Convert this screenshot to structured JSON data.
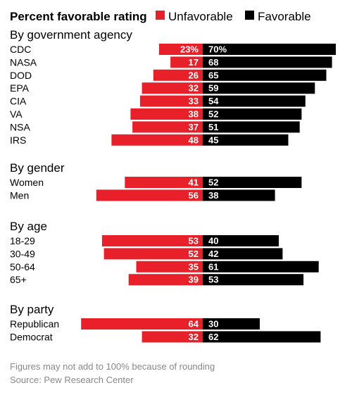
{
  "chart_data": {
    "type": "bar",
    "title": "Percent favorable rating",
    "legend": [
      {
        "name": "Unfavorable",
        "color": "#e8202a"
      },
      {
        "name": "Favorable",
        "color": "#000000"
      }
    ],
    "legend_placement": "top-right",
    "sections": [
      {
        "title": "By government agency",
        "rows": [
          {
            "label": "CDC",
            "unfavorable": 23,
            "favorable": 70,
            "unfavorable_text": "23%",
            "favorable_text": "70%"
          },
          {
            "label": "NASA",
            "unfavorable": 17,
            "favorable": 68,
            "unfavorable_text": "17",
            "favorable_text": "68"
          },
          {
            "label": "DOD",
            "unfavorable": 26,
            "favorable": 65,
            "unfavorable_text": "26",
            "favorable_text": "65"
          },
          {
            "label": "EPA",
            "unfavorable": 32,
            "favorable": 59,
            "unfavorable_text": "32",
            "favorable_text": "59"
          },
          {
            "label": "CIA",
            "unfavorable": 33,
            "favorable": 54,
            "unfavorable_text": "33",
            "favorable_text": "54"
          },
          {
            "label": "VA",
            "unfavorable": 38,
            "favorable": 52,
            "unfavorable_text": "38",
            "favorable_text": "52"
          },
          {
            "label": "NSA",
            "unfavorable": 37,
            "favorable": 51,
            "unfavorable_text": "37",
            "favorable_text": "51"
          },
          {
            "label": "IRS",
            "unfavorable": 48,
            "favorable": 45,
            "unfavorable_text": "48",
            "favorable_text": "45"
          }
        ]
      },
      {
        "title": "By gender",
        "rows": [
          {
            "label": "Women",
            "unfavorable": 41,
            "favorable": 52,
            "unfavorable_text": "41",
            "favorable_text": "52"
          },
          {
            "label": "Men",
            "unfavorable": 56,
            "favorable": 38,
            "unfavorable_text": "56",
            "favorable_text": "38"
          }
        ]
      },
      {
        "title": "By age",
        "rows": [
          {
            "label": "18-29",
            "unfavorable": 53,
            "favorable": 40,
            "unfavorable_text": "53",
            "favorable_text": "40"
          },
          {
            "label": "30-49",
            "unfavorable": 52,
            "favorable": 42,
            "unfavorable_text": "52",
            "favorable_text": "42"
          },
          {
            "label": "50-64",
            "unfavorable": 35,
            "favorable": 61,
            "unfavorable_text": "35",
            "favorable_text": "61"
          },
          {
            "label": "65+",
            "unfavorable": 39,
            "favorable": 53,
            "unfavorable_text": "39",
            "favorable_text": "53"
          }
        ]
      },
      {
        "title": "By party",
        "rows": [
          {
            "label": "Republican",
            "unfavorable": 64,
            "favorable": 30,
            "unfavorable_text": "64",
            "favorable_text": "30"
          },
          {
            "label": "Democrat",
            "unfavorable": 32,
            "favorable": 62,
            "unfavorable_text": "32",
            "favorable_text": "62"
          }
        ]
      }
    ],
    "notes": [
      "Figures may not add to 100% because of rounding",
      "Source: Pew Research Center"
    ]
  }
}
